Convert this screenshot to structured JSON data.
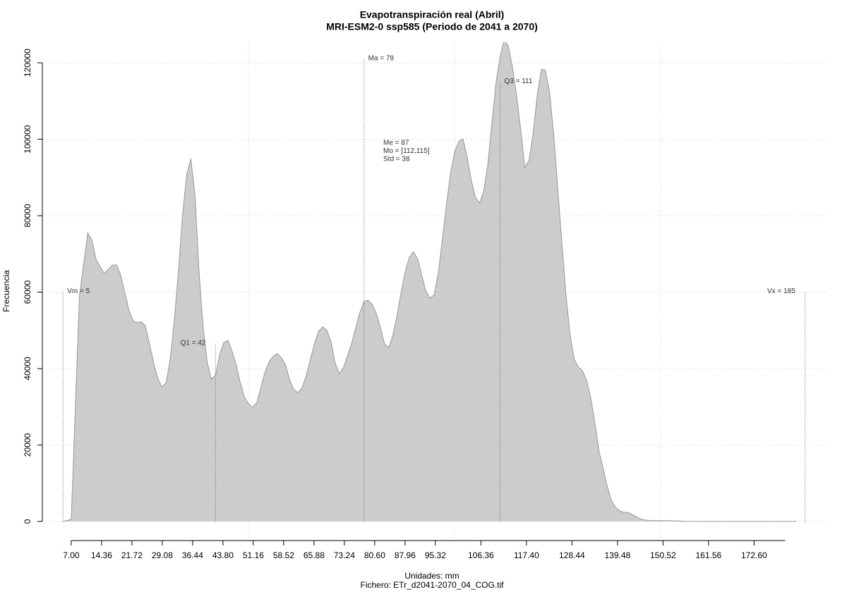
{
  "chart_data": {
    "type": "area",
    "title": "Evapotranspiración real (Abril)",
    "subtitle": "MRI-ESM2-0 ssp585 (Periodo de 2041 a 2070)",
    "y_label": "Frecuencia",
    "x_label": "Unidades: mm",
    "caption": "Fichero: ETr_d2041-2070_04_COG.tif",
    "color": "#cccccc",
    "line_color": "#999999",
    "grid": true,
    "xlim": [
      0,
      190
    ],
    "ylim": [
      -5000,
      125000
    ],
    "yticks": [
      0,
      20000,
      40000,
      60000,
      80000,
      100000,
      120000
    ],
    "xticks": [
      {
        "value": 7,
        "label": "7.00"
      },
      14.36,
      21.72,
      29.08,
      36.44,
      {
        "value": 43.8,
        "label": "43.80"
      },
      51.16,
      58.52,
      65.88,
      73.24,
      {
        "value": 80.6,
        "label": "80.60"
      },
      87.96,
      95.32,
      106.36,
      {
        "value": 117.4,
        "label": "117.40"
      },
      128.44,
      139.48,
      150.52,
      161.56,
      {
        "value": 172.6,
        "label": "172.60"
      }
    ],
    "xgrid": [
      50,
      100,
      150
    ],
    "x": [
      5,
      7,
      9,
      11,
      12,
      13,
      15,
      17,
      18,
      19,
      21,
      22,
      23,
      24,
      25,
      27,
      28,
      29,
      30,
      31,
      32,
      33,
      34,
      35,
      36,
      37,
      38,
      39,
      40,
      41,
      42,
      43,
      44,
      45,
      46,
      47,
      48,
      49,
      50,
      51,
      52,
      53,
      54,
      55,
      56,
      57,
      58,
      59,
      60,
      61,
      62,
      63,
      64,
      65,
      66,
      67,
      68,
      69,
      70,
      71,
      72,
      73,
      74,
      75,
      76,
      77,
      78,
      79,
      80,
      81,
      82,
      83,
      84,
      85,
      86,
      87,
      88,
      89,
      90,
      91,
      92,
      93,
      94,
      95,
      96,
      97,
      98,
      99,
      100,
      101,
      102,
      103,
      104,
      105,
      106,
      107,
      108,
      109,
      110,
      111,
      112,
      113,
      114,
      115,
      116,
      117,
      118,
      119,
      120,
      121,
      122,
      123,
      124,
      125,
      126,
      127,
      128,
      129,
      130,
      131,
      132,
      133,
      134,
      135,
      136,
      137,
      138,
      139,
      140,
      141,
      142,
      143,
      144,
      145,
      146,
      148,
      152,
      156,
      160,
      183
    ],
    "values": [
      0,
      500,
      59000,
      75500,
      73700,
      68600,
      64900,
      67100,
      67100,
      64500,
      55300,
      52500,
      52000,
      52300,
      51200,
      41500,
      37400,
      35200,
      36300,
      42400,
      52500,
      65400,
      80200,
      90700,
      94900,
      85700,
      65400,
      50700,
      41500,
      37200,
      38300,
      43700,
      46800,
      47400,
      44600,
      40900,
      36300,
      32600,
      30800,
      29900,
      31100,
      35000,
      39100,
      41800,
      43300,
      43900,
      42800,
      40900,
      36900,
      34500,
      33700,
      35000,
      38200,
      42400,
      46600,
      49800,
      50900,
      50000,
      47000,
      41500,
      38700,
      40200,
      43300,
      46600,
      50700,
      54700,
      57500,
      57900,
      56800,
      54400,
      50700,
      46400,
      45500,
      48700,
      53800,
      59900,
      65400,
      69100,
      70600,
      68700,
      64500,
      60300,
      58400,
      59300,
      64900,
      73700,
      82900,
      91200,
      96800,
      99500,
      100100,
      95500,
      89400,
      84800,
      83300,
      86300,
      93100,
      104100,
      114600,
      121600,
      126000,
      124400,
      118900,
      111500,
      102700,
      92600,
      94400,
      101400,
      111500,
      118300,
      118000,
      112400,
      101400,
      87000,
      72800,
      59000,
      48800,
      42400,
      40400,
      39400,
      36900,
      32300,
      25800,
      18400,
      13800,
      9200,
      5500,
      3700,
      2800,
      2400,
      2400,
      1800,
      1300,
      700,
      400,
      200,
      200,
      50,
      0,
      0
    ],
    "markers": [
      {
        "label": "Vm = 5",
        "x": 5,
        "y": 60000,
        "side": "right"
      },
      {
        "label": "Q1 = 42",
        "x": 42,
        "y": 46500,
        "side": "left"
      },
      {
        "label": "Ma = 78",
        "x": 78,
        "y": 121000,
        "side": "right"
      },
      {
        "label": "Q3 = 111",
        "x": 111,
        "y": 115000,
        "side": "right"
      },
      {
        "label": "Vx = 185",
        "x": 185,
        "y": 60000,
        "side": "left"
      }
    ],
    "annotations": [
      "Me = 87",
      "Mo = [112,115]",
      "Std = 38"
    ]
  }
}
